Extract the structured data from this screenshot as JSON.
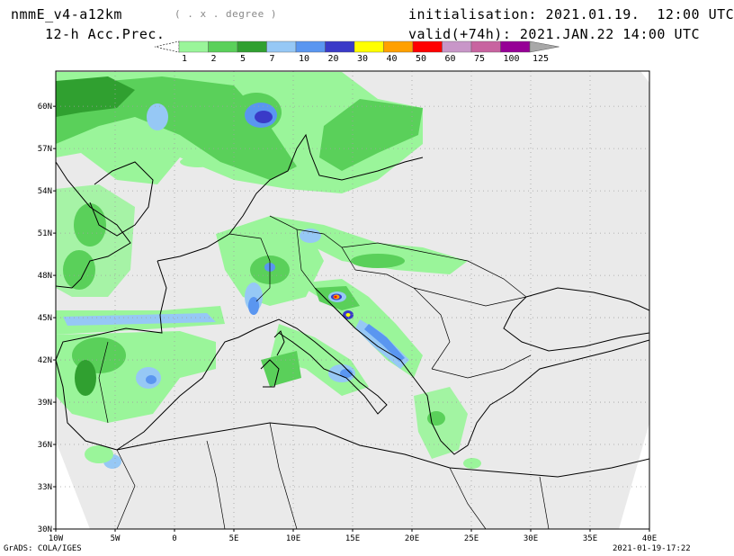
{
  "header": {
    "model": "nmmE_v4-a12km",
    "units": "( . x . degree )",
    "field": "12-h Acc.Prec.",
    "init": "initialisation: 2021.01.19.  12:00 UTC",
    "valid": "valid(+74h): 2021.JAN.22 14:00 UTC"
  },
  "legend": {
    "colors": [
      "#9af59a",
      "#5ad05a",
      "#30a030",
      "#96c8f5",
      "#5a96f0",
      "#3a3ac8",
      "#ffff00",
      "#ffa000",
      "#ff0000",
      "#c896c8",
      "#c864a0",
      "#960096",
      "#a8a8a8"
    ],
    "ticks": [
      "1",
      "2",
      "5",
      "7",
      "10",
      "20",
      "30",
      "40",
      "50",
      "60",
      "75",
      "100",
      "125"
    ]
  },
  "map": {
    "lat_labels": [
      "60N",
      "57N",
      "54N",
      "51N",
      "48N",
      "45N",
      "42N",
      "39N",
      "36N",
      "33N",
      "30N"
    ],
    "lon_labels": [
      "10W",
      "5W",
      "0",
      "5E",
      "10E",
      "15E",
      "20E",
      "25E",
      "30E",
      "35E",
      "40E"
    ],
    "colors": {
      "land": "#eaeaea",
      "nodata": "#ffffff",
      "grid": "#a0a0a0",
      "coast": "#000000"
    }
  },
  "footer": {
    "left": "GrADS: COLA/IGES",
    "right": "2021-01-19-17:22"
  }
}
